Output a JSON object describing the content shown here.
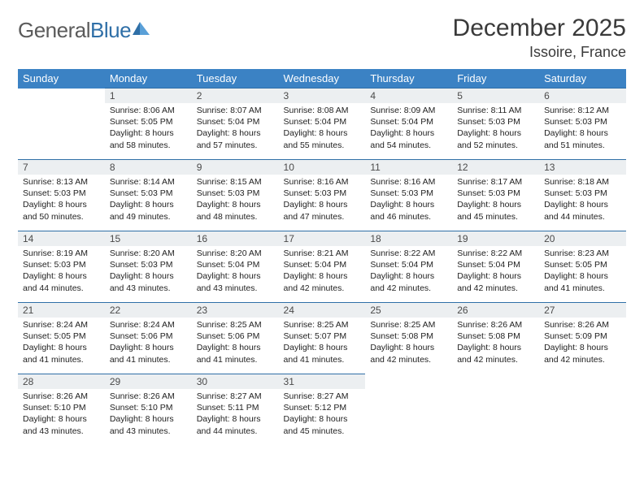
{
  "brand": {
    "part1": "General",
    "part2": "Blue"
  },
  "title": "December 2025",
  "location": "Issoire, France",
  "colors": {
    "header_bg": "#3b82c4",
    "header_text": "#ffffff",
    "daynum_bg": "#eceff1",
    "border": "#2f6fa7",
    "text": "#222222",
    "title_text": "#3a3a3a"
  },
  "dayNames": [
    "Sunday",
    "Monday",
    "Tuesday",
    "Wednesday",
    "Thursday",
    "Friday",
    "Saturday"
  ],
  "weeks": [
    [
      null,
      {
        "d": "1",
        "sr": "8:06 AM",
        "ss": "5:05 PM",
        "dl": "8 hours and 58 minutes."
      },
      {
        "d": "2",
        "sr": "8:07 AM",
        "ss": "5:04 PM",
        "dl": "8 hours and 57 minutes."
      },
      {
        "d": "3",
        "sr": "8:08 AM",
        "ss": "5:04 PM",
        "dl": "8 hours and 55 minutes."
      },
      {
        "d": "4",
        "sr": "8:09 AM",
        "ss": "5:04 PM",
        "dl": "8 hours and 54 minutes."
      },
      {
        "d": "5",
        "sr": "8:11 AM",
        "ss": "5:03 PM",
        "dl": "8 hours and 52 minutes."
      },
      {
        "d": "6",
        "sr": "8:12 AM",
        "ss": "5:03 PM",
        "dl": "8 hours and 51 minutes."
      }
    ],
    [
      {
        "d": "7",
        "sr": "8:13 AM",
        "ss": "5:03 PM",
        "dl": "8 hours and 50 minutes."
      },
      {
        "d": "8",
        "sr": "8:14 AM",
        "ss": "5:03 PM",
        "dl": "8 hours and 49 minutes."
      },
      {
        "d": "9",
        "sr": "8:15 AM",
        "ss": "5:03 PM",
        "dl": "8 hours and 48 minutes."
      },
      {
        "d": "10",
        "sr": "8:16 AM",
        "ss": "5:03 PM",
        "dl": "8 hours and 47 minutes."
      },
      {
        "d": "11",
        "sr": "8:16 AM",
        "ss": "5:03 PM",
        "dl": "8 hours and 46 minutes."
      },
      {
        "d": "12",
        "sr": "8:17 AM",
        "ss": "5:03 PM",
        "dl": "8 hours and 45 minutes."
      },
      {
        "d": "13",
        "sr": "8:18 AM",
        "ss": "5:03 PM",
        "dl": "8 hours and 44 minutes."
      }
    ],
    [
      {
        "d": "14",
        "sr": "8:19 AM",
        "ss": "5:03 PM",
        "dl": "8 hours and 44 minutes."
      },
      {
        "d": "15",
        "sr": "8:20 AM",
        "ss": "5:03 PM",
        "dl": "8 hours and 43 minutes."
      },
      {
        "d": "16",
        "sr": "8:20 AM",
        "ss": "5:04 PM",
        "dl": "8 hours and 43 minutes."
      },
      {
        "d": "17",
        "sr": "8:21 AM",
        "ss": "5:04 PM",
        "dl": "8 hours and 42 minutes."
      },
      {
        "d": "18",
        "sr": "8:22 AM",
        "ss": "5:04 PM",
        "dl": "8 hours and 42 minutes."
      },
      {
        "d": "19",
        "sr": "8:22 AM",
        "ss": "5:04 PM",
        "dl": "8 hours and 42 minutes."
      },
      {
        "d": "20",
        "sr": "8:23 AM",
        "ss": "5:05 PM",
        "dl": "8 hours and 41 minutes."
      }
    ],
    [
      {
        "d": "21",
        "sr": "8:24 AM",
        "ss": "5:05 PM",
        "dl": "8 hours and 41 minutes."
      },
      {
        "d": "22",
        "sr": "8:24 AM",
        "ss": "5:06 PM",
        "dl": "8 hours and 41 minutes."
      },
      {
        "d": "23",
        "sr": "8:25 AM",
        "ss": "5:06 PM",
        "dl": "8 hours and 41 minutes."
      },
      {
        "d": "24",
        "sr": "8:25 AM",
        "ss": "5:07 PM",
        "dl": "8 hours and 41 minutes."
      },
      {
        "d": "25",
        "sr": "8:25 AM",
        "ss": "5:08 PM",
        "dl": "8 hours and 42 minutes."
      },
      {
        "d": "26",
        "sr": "8:26 AM",
        "ss": "5:08 PM",
        "dl": "8 hours and 42 minutes."
      },
      {
        "d": "27",
        "sr": "8:26 AM",
        "ss": "5:09 PM",
        "dl": "8 hours and 42 minutes."
      }
    ],
    [
      {
        "d": "28",
        "sr": "8:26 AM",
        "ss": "5:10 PM",
        "dl": "8 hours and 43 minutes."
      },
      {
        "d": "29",
        "sr": "8:26 AM",
        "ss": "5:10 PM",
        "dl": "8 hours and 43 minutes."
      },
      {
        "d": "30",
        "sr": "8:27 AM",
        "ss": "5:11 PM",
        "dl": "8 hours and 44 minutes."
      },
      {
        "d": "31",
        "sr": "8:27 AM",
        "ss": "5:12 PM",
        "dl": "8 hours and 45 minutes."
      },
      null,
      null,
      null
    ]
  ],
  "labels": {
    "sunrise": "Sunrise: ",
    "sunset": "Sunset: ",
    "daylight": "Daylight: "
  }
}
